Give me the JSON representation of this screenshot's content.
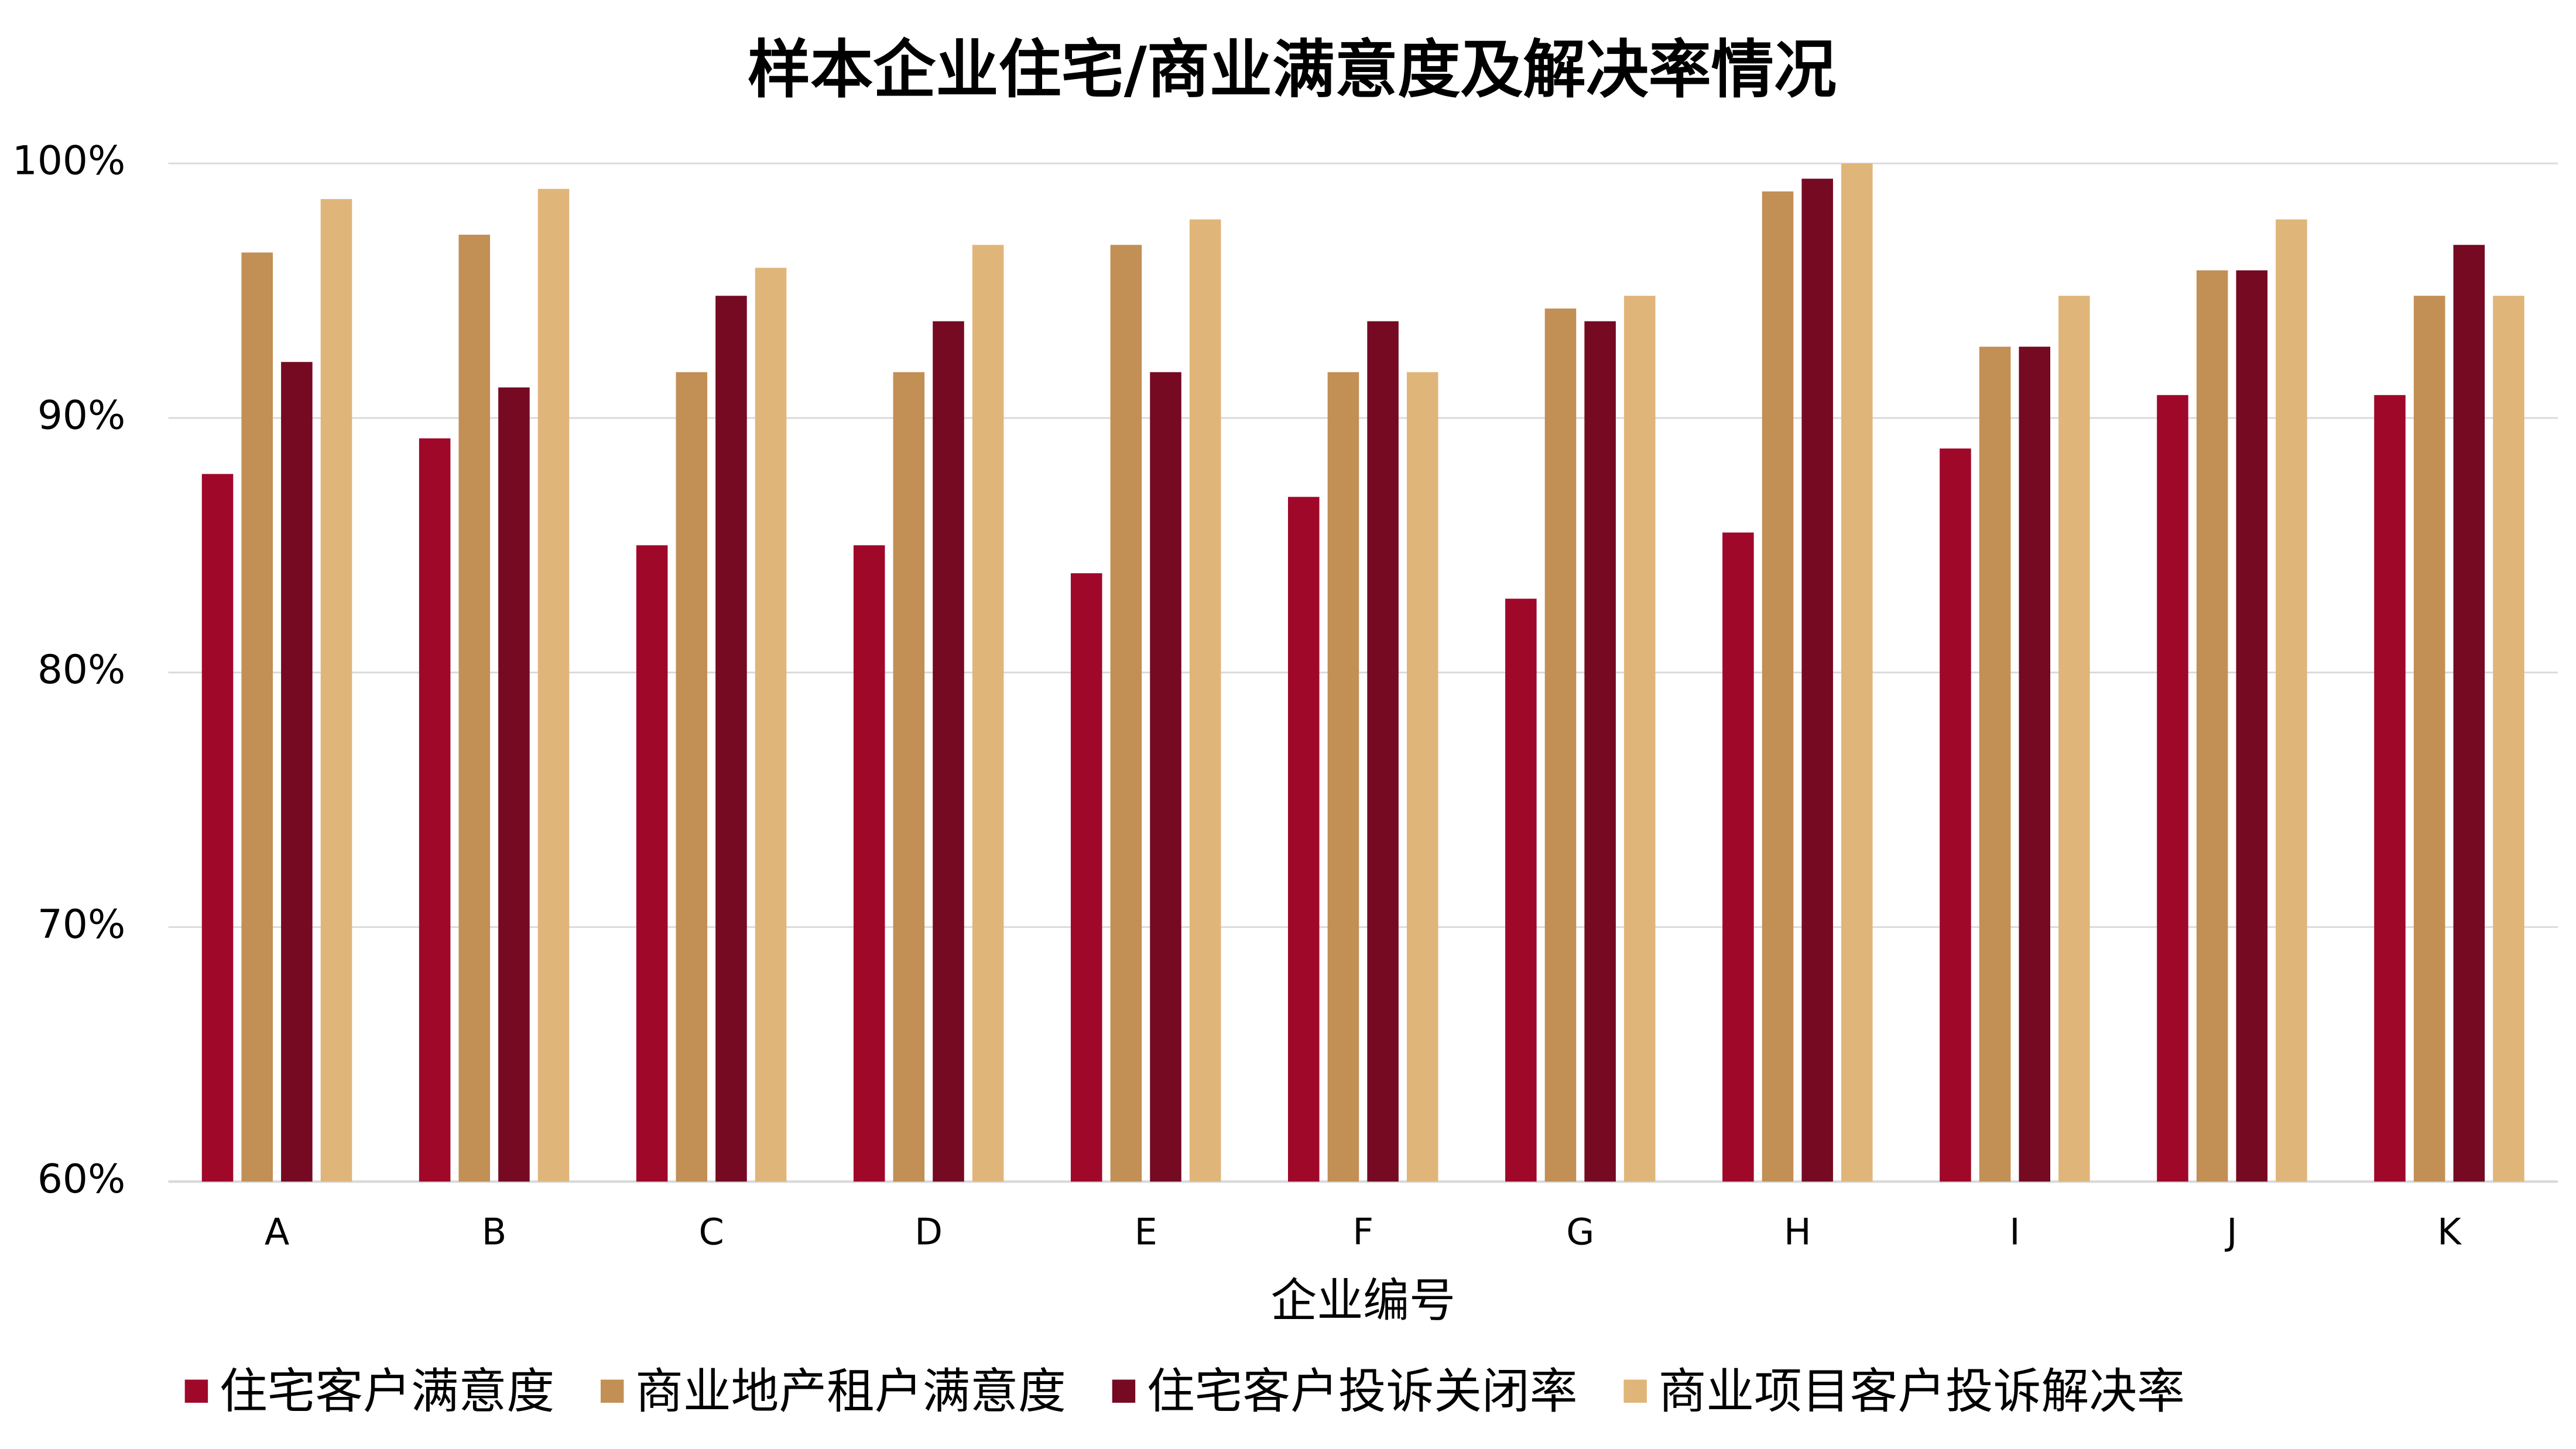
{
  "chart_data": {
    "type": "bar",
    "title": "样本企业住宅/商业满意度及解决率情况",
    "x_label": "企业编号",
    "categories": [
      "A",
      "B",
      "C",
      "D",
      "E",
      "F",
      "G",
      "H",
      "I",
      "J",
      "K"
    ],
    "series": [
      {
        "name": "住宅客户满意度",
        "color": "#a0082a",
        "values": [
          87.8,
          89.2,
          85.0,
          85.0,
          83.9,
          86.9,
          82.9,
          85.5,
          88.8,
          90.9,
          90.9
        ]
      },
      {
        "name": "商业地产租户满意度",
        "color": "#c28f55",
        "values": [
          96.5,
          97.2,
          91.8,
          91.8,
          96.8,
          91.8,
          94.3,
          98.9,
          92.8,
          95.8,
          94.8
        ]
      },
      {
        "name": "住宅客户投诉关闭率",
        "color": "#750a22",
        "values": [
          92.2,
          91.2,
          94.8,
          93.8,
          91.8,
          93.8,
          93.8,
          99.4,
          92.8,
          95.8,
          96.8
        ]
      },
      {
        "name": "商业项目客户投诉解决率",
        "color": "#e0b57a",
        "values": [
          98.6,
          99.0,
          95.9,
          96.8,
          97.8,
          91.8,
          94.8,
          100,
          94.8,
          97.8,
          94.8
        ]
      }
    ],
    "ylim": [
      60,
      100
    ],
    "yticks": [
      {
        "value": 60,
        "label": "60%"
      },
      {
        "value": 70,
        "label": "70%"
      },
      {
        "value": 80,
        "label": "80%"
      },
      {
        "value": 90,
        "label": "90%"
      },
      {
        "value": 100,
        "label": "100%"
      }
    ],
    "grid": true,
    "legend": "bottom"
  }
}
